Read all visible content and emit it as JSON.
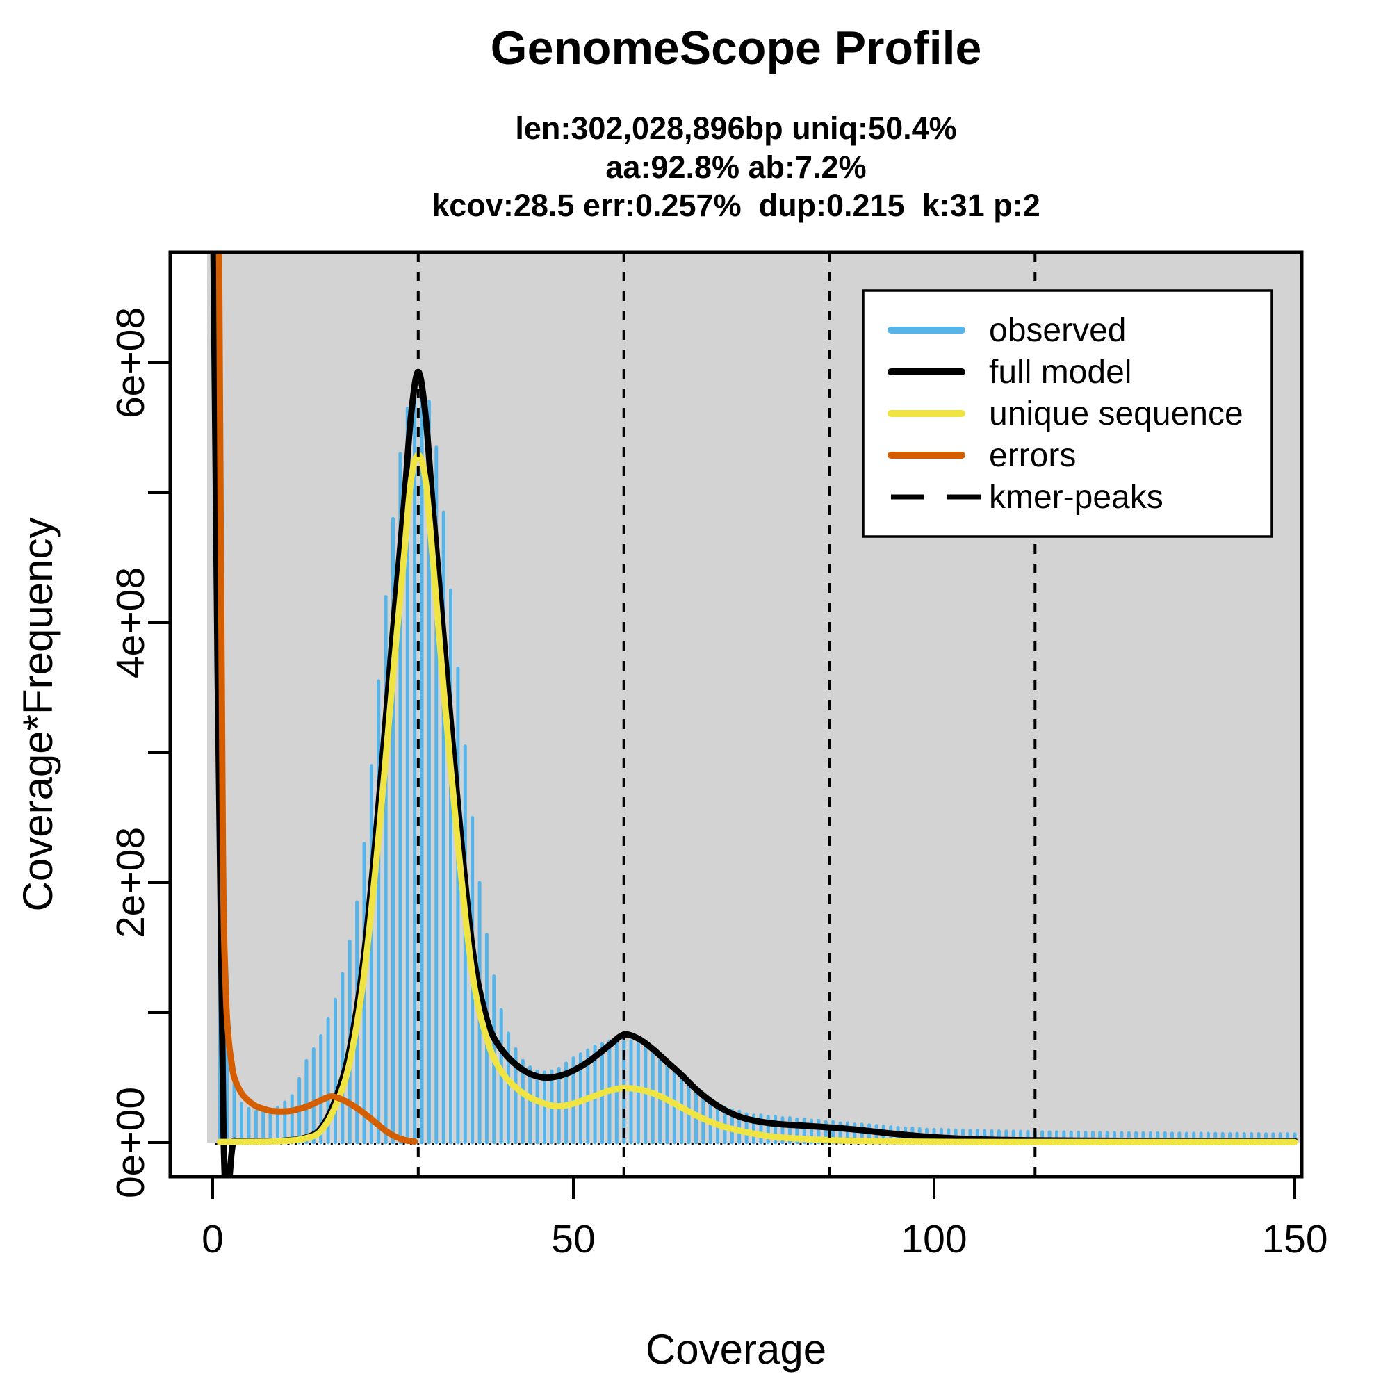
{
  "header": {
    "title": "GenomeScope Profile",
    "subtitle_lines": [
      "len:302,028,896bp uniq:50.4%",
      "aa:92.8% ab:7.2%",
      "kcov:28.5 err:0.257%  dup:0.215  k:31 p:2"
    ]
  },
  "colors": {
    "observed": "#56B4E9",
    "full_model": "#000000",
    "unique_sequence": "#F0E442",
    "errors": "#D55E00",
    "panel_background": "#D3D3D3",
    "plot_frame": "#000000",
    "legend_background": "#FFFFFF"
  },
  "axes": {
    "x": {
      "label": "Coverage",
      "tick_values": [
        0,
        50,
        100,
        150
      ],
      "range": [
        0,
        150
      ]
    },
    "y": {
      "label": "Coverage*Frequency",
      "tick_values_e8": [
        0,
        1,
        2,
        3,
        4,
        5,
        6
      ],
      "labeled_ticks": [
        {
          "value_e8": 0,
          "label": "0e+00"
        },
        {
          "value_e8": 2,
          "label": "2e+08"
        },
        {
          "value_e8": 4,
          "label": "4e+08"
        },
        {
          "value_e8": 6,
          "label": "6e+08"
        }
      ],
      "range_e8": [
        0,
        6.85
      ]
    }
  },
  "legend": {
    "entries": [
      {
        "label": "observed",
        "color_key": "observed",
        "dashed": false
      },
      {
        "label": "full model",
        "color_key": "full_model",
        "dashed": false
      },
      {
        "label": "unique sequence",
        "color_key": "unique_sequence",
        "dashed": false
      },
      {
        "label": "errors",
        "color_key": "errors",
        "dashed": false
      },
      {
        "label": "kmer-peaks",
        "color_key": "full_model",
        "dashed": true
      }
    ]
  },
  "chart_data": {
    "type": "bar",
    "title": "GenomeScope Profile",
    "xlabel": "Coverage",
    "ylabel": "Coverage*Frequency",
    "xlim": [
      0,
      150
    ],
    "ylim_e8": [
      0,
      6.85
    ],
    "grid": false,
    "legend_position": "top-right",
    "model_stats": {
      "len_bp": "302,028,896",
      "uniq": "50.4%",
      "aa": "92.8%",
      "ab": "7.2%",
      "kcov": 28.5,
      "err": "0.257%",
      "dup": 0.215,
      "k": 31,
      "p": 2
    },
    "kmer_peaks_coverage": [
      28.5,
      57,
      85.5,
      114
    ],
    "units": "values in 1e8 Coverage*Frequency",
    "observed_histogram": {
      "coverage_start": 1,
      "offscale_first_bar": true,
      "values_e8": [
        6.9,
        0.8,
        0.45,
        0.3,
        0.26,
        0.24,
        0.24,
        0.25,
        0.27,
        0.31,
        0.36,
        0.49,
        0.63,
        0.72,
        0.82,
        0.95,
        1.1,
        1.3,
        1.55,
        1.85,
        2.3,
        2.9,
        3.55,
        4.2,
        4.8,
        5.3,
        5.65,
        5.85,
        5.87,
        5.7,
        5.35,
        4.85,
        4.25,
        3.65,
        3.05,
        2.5,
        2.0,
        1.6,
        1.28,
        1.02,
        0.84,
        0.72,
        0.63,
        0.58,
        0.55,
        0.54,
        0.55,
        0.57,
        0.61,
        0.65,
        0.68,
        0.71,
        0.74,
        0.76,
        0.78,
        0.79,
        0.79,
        0.78,
        0.76,
        0.73,
        0.7,
        0.66,
        0.61,
        0.56,
        0.51,
        0.46,
        0.41,
        0.37,
        0.33,
        0.3,
        0.27,
        0.25,
        0.24,
        0.22,
        0.21,
        0.21,
        0.2,
        0.2,
        0.19,
        0.19,
        0.18,
        0.18,
        0.17,
        0.17,
        0.16,
        0.16,
        0.15,
        0.15,
        0.14,
        0.14,
        0.135,
        0.13,
        0.125,
        0.12,
        0.115,
        0.11,
        0.11,
        0.105,
        0.1,
        0.1,
        0.1,
        0.098,
        0.096,
        0.095,
        0.093,
        0.092,
        0.09,
        0.09,
        0.088,
        0.087,
        0.086,
        0.085,
        0.084,
        0.083,
        0.082,
        0.081,
        0.08,
        0.08,
        0.079,
        0.078,
        0.077,
        0.077,
        0.076,
        0.076,
        0.075,
        0.075,
        0.074,
        0.074,
        0.073,
        0.073,
        0.072,
        0.072,
        0.071,
        0.071,
        0.07,
        0.07,
        0.07,
        0.069,
        0.069,
        0.068,
        0.068,
        0.068,
        0.067,
        0.067,
        0.067,
        0.066,
        0.066,
        0.066,
        0.065,
        0.065
      ]
    },
    "series": [
      {
        "name": "full model",
        "color_key": "full_model",
        "points_cov_e8": [
          [
            0.05,
            7.2
          ],
          [
            1.5,
            0.06
          ],
          [
            3,
            0.015
          ],
          [
            6,
            0.012
          ],
          [
            10,
            0.015
          ],
          [
            13,
            0.04
          ],
          [
            15,
            0.11
          ],
          [
            17,
            0.33
          ],
          [
            19,
            0.72
          ],
          [
            21,
            1.45
          ],
          [
            23,
            2.6
          ],
          [
            25,
            3.95
          ],
          [
            26.5,
            4.9
          ],
          [
            27.5,
            5.6
          ],
          [
            28.5,
            5.93
          ],
          [
            29.5,
            5.6
          ],
          [
            30.5,
            4.9
          ],
          [
            32,
            3.9
          ],
          [
            34,
            2.6
          ],
          [
            36,
            1.5
          ],
          [
            38,
            0.95
          ],
          [
            40,
            0.72
          ],
          [
            43,
            0.56
          ],
          [
            46,
            0.5
          ],
          [
            49,
            0.53
          ],
          [
            52,
            0.62
          ],
          [
            55,
            0.75
          ],
          [
            57,
            0.83
          ],
          [
            59,
            0.8
          ],
          [
            61,
            0.72
          ],
          [
            63,
            0.62
          ],
          [
            65,
            0.52
          ],
          [
            67,
            0.41
          ],
          [
            69,
            0.32
          ],
          [
            71,
            0.25
          ],
          [
            73,
            0.2
          ],
          [
            75,
            0.17
          ],
          [
            78,
            0.145
          ],
          [
            82,
            0.13
          ],
          [
            86,
            0.115
          ],
          [
            90,
            0.095
          ],
          [
            94,
            0.07
          ],
          [
            98,
            0.05
          ],
          [
            102,
            0.035
          ],
          [
            106,
            0.025
          ],
          [
            110,
            0.02
          ],
          [
            114,
            0.017
          ],
          [
            120,
            0.015
          ],
          [
            130,
            0.013
          ],
          [
            140,
            0.012
          ],
          [
            150,
            0.012
          ]
        ]
      },
      {
        "name": "unique sequence",
        "color_key": "unique_sequence",
        "points_cov_e8": [
          [
            1,
            0.005
          ],
          [
            6,
            0.006
          ],
          [
            10,
            0.012
          ],
          [
            13,
            0.035
          ],
          [
            15,
            0.09
          ],
          [
            17,
            0.28
          ],
          [
            19,
            0.62
          ],
          [
            21,
            1.3
          ],
          [
            23,
            2.35
          ],
          [
            25,
            3.6
          ],
          [
            26.5,
            4.5
          ],
          [
            27.5,
            5.1
          ],
          [
            28.5,
            5.29
          ],
          [
            29.5,
            5.1
          ],
          [
            30.5,
            4.5
          ],
          [
            32,
            3.5
          ],
          [
            34,
            2.3
          ],
          [
            36,
            1.3
          ],
          [
            38,
            0.8
          ],
          [
            40,
            0.55
          ],
          [
            43,
            0.38
          ],
          [
            46,
            0.3
          ],
          [
            48,
            0.28
          ],
          [
            50,
            0.3
          ],
          [
            53,
            0.36
          ],
          [
            55,
            0.4
          ],
          [
            57,
            0.42
          ],
          [
            59,
            0.41
          ],
          [
            61,
            0.38
          ],
          [
            63,
            0.33
          ],
          [
            65,
            0.27
          ],
          [
            67,
            0.21
          ],
          [
            69,
            0.16
          ],
          [
            71,
            0.12
          ],
          [
            74,
            0.08
          ],
          [
            77,
            0.05
          ],
          [
            80,
            0.035
          ],
          [
            85,
            0.02
          ],
          [
            90,
            0.012
          ],
          [
            100,
            0.006
          ],
          [
            110,
            0.004
          ],
          [
            125,
            0.004
          ],
          [
            150,
            0.004
          ]
        ]
      },
      {
        "name": "errors",
        "color_key": "errors",
        "points_cov_e8": [
          [
            0.85,
            7.2
          ],
          [
            1.4,
            2.4
          ],
          [
            1.8,
            1.2
          ],
          [
            2.2,
            0.8
          ],
          [
            2.6,
            0.62
          ],
          [
            3,
            0.5
          ],
          [
            4,
            0.38
          ],
          [
            5,
            0.32
          ],
          [
            6,
            0.28
          ],
          [
            7,
            0.26
          ],
          [
            8,
            0.245
          ],
          [
            9,
            0.24
          ],
          [
            10,
            0.24
          ],
          [
            11,
            0.245
          ],
          [
            12,
            0.26
          ],
          [
            13,
            0.275
          ],
          [
            14,
            0.3
          ],
          [
            15,
            0.325
          ],
          [
            16,
            0.35
          ],
          [
            16.5,
            0.355
          ],
          [
            17,
            0.35
          ],
          [
            18,
            0.33
          ],
          [
            19,
            0.3
          ],
          [
            20,
            0.265
          ],
          [
            21,
            0.225
          ],
          [
            22,
            0.18
          ],
          [
            23,
            0.135
          ],
          [
            24,
            0.09
          ],
          [
            25,
            0.055
          ],
          [
            26,
            0.03
          ],
          [
            27,
            0.015
          ],
          [
            28,
            0.008
          ]
        ]
      }
    ]
  }
}
